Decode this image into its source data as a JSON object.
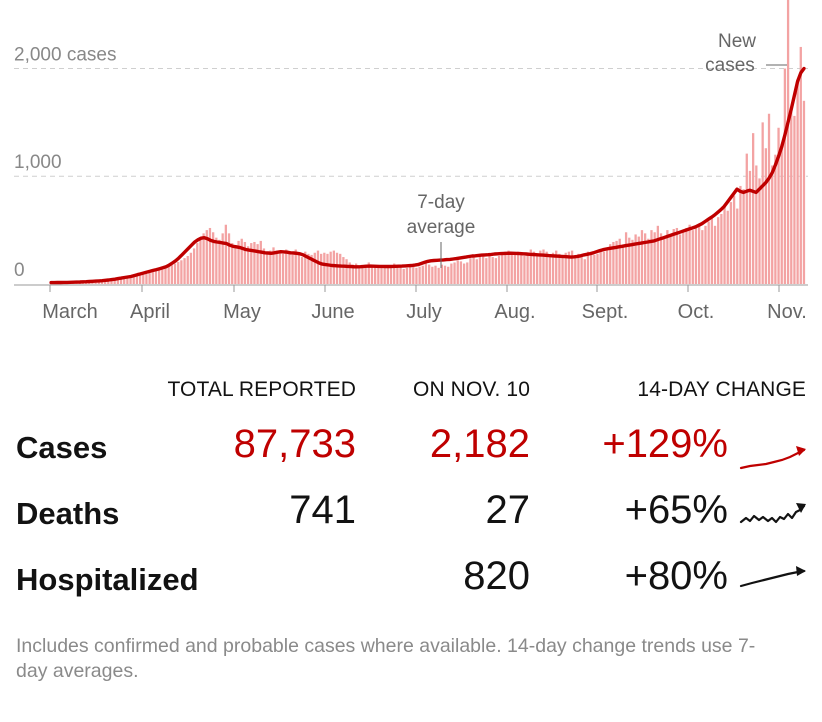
{
  "chart_data": {
    "type": "bar",
    "y_ticks": [
      {
        "value": 0,
        "label": "0"
      },
      {
        "value": 1000,
        "label": "1,000"
      },
      {
        "value": 2000,
        "label": "2,000 cases"
      }
    ],
    "ylim": [
      0,
      2450
    ],
    "x_ticks": [
      "March",
      "April",
      "May",
      "June",
      "July",
      "Aug.",
      "Sept.",
      "Oct.",
      "Nov."
    ],
    "annotations": {
      "average": "7-day average",
      "new_cases": "New cases"
    },
    "series": [
      {
        "kind": "bars",
        "values": [
          12,
          12,
          13,
          13,
          14,
          14,
          15,
          16,
          17,
          18,
          18,
          19,
          20,
          22,
          24,
          25,
          27,
          28,
          30,
          33,
          36,
          40,
          45,
          50,
          55,
          60,
          66,
          72,
          78,
          85,
          92,
          100,
          110,
          120,
          130,
          140,
          150,
          160,
          175,
          190,
          205,
          220,
          240,
          260,
          290,
          330,
          380,
          430,
          470,
          500,
          520,
          480,
          430,
          410,
          470,
          550,
          470,
          380,
          360,
          400,
          420,
          390,
          350,
          380,
          390,
          370,
          400,
          330,
          300,
          310,
          340,
          310,
          300,
          280,
          320,
          300,
          270,
          320,
          290,
          250,
          300,
          280,
          270,
          290,
          310,
          280,
          290,
          280,
          300,
          310,
          290,
          280,
          250,
          230,
          200,
          180,
          190,
          160,
          170,
          180,
          200,
          170,
          160,
          150,
          170,
          160,
          170,
          150,
          190,
          170,
          160,
          140,
          150,
          160,
          170,
          150,
          160,
          170,
          190,
          180,
          160,
          170,
          150,
          180,
          170,
          160,
          190,
          200,
          220,
          210,
          190,
          200,
          240,
          260,
          230,
          280,
          260,
          240,
          270,
          250,
          240,
          260,
          280,
          300,
          310,
          290,
          270,
          300,
          280,
          260,
          290,
          320,
          300,
          280,
          310,
          320,
          300,
          270,
          290,
          310,
          280,
          260,
          290,
          300,
          310,
          240,
          280,
          250,
          230,
          300,
          290,
          270,
          280,
          320,
          300,
          330,
          370,
          390,
          400,
          420,
          350,
          480,
          430,
          410,
          460,
          440,
          500,
          470,
          420,
          500,
          480,
          540,
          470,
          440,
          500,
          460,
          510,
          520,
          460,
          480,
          520,
          550,
          500,
          530,
          560,
          500,
          540,
          580,
          610,
          540,
          620,
          650,
          720,
          680,
          760,
          820,
          700,
          910,
          880,
          1210,
          1050,
          1400,
          1100,
          980,
          1500,
          1260,
          1580,
          1100,
          1200,
          1450,
          1300,
          2000,
          2650,
          1600,
          1560,
          1900,
          2200,
          1700
        ],
        "color": "#f3a3a3"
      },
      {
        "kind": "line",
        "name": "7-day average",
        "values": [
          13,
          13,
          14,
          14,
          15,
          15,
          16,
          17,
          18,
          19,
          20,
          21,
          23,
          25,
          27,
          29,
          31,
          34,
          37,
          41,
          45,
          50,
          55,
          60,
          65,
          70,
          78,
          86,
          94,
          102,
          110,
          118,
          126,
          134,
          142,
          150,
          160,
          175,
          195,
          215,
          240,
          270,
          300,
          330,
          360,
          390,
          410,
          425,
          430,
          420,
          405,
          395,
          390,
          385,
          380,
          375,
          360,
          350,
          345,
          340,
          330,
          320,
          315,
          310,
          305,
          300,
          295,
          290,
          288,
          285,
          290,
          295,
          300,
          298,
          295,
          290,
          288,
          285,
          280,
          270,
          255,
          240,
          225,
          210,
          195,
          185,
          180,
          176,
          172,
          170,
          168,
          166,
          165,
          163,
          162,
          160,
          160,
          161,
          163,
          165,
          166,
          165,
          164,
          163,
          163,
          162,
          162,
          163,
          164,
          165,
          166,
          168,
          170,
          172,
          175,
          180,
          190,
          200,
          210,
          215,
          218,
          220,
          222,
          224,
          226,
          228,
          232,
          236,
          240,
          245,
          250,
          255,
          260,
          262,
          265,
          268,
          270,
          272,
          275,
          278,
          280,
          282,
          284,
          285,
          286,
          285,
          284,
          282,
          280,
          278,
          276,
          274,
          272,
          270,
          268,
          266,
          264,
          262,
          260,
          258,
          256,
          254,
          252,
          250,
          252,
          256,
          262,
          270,
          276,
          282,
          290,
          300,
          310,
          318,
          325,
          330,
          335,
          340,
          345,
          350,
          355,
          360,
          365,
          370,
          375,
          380,
          385,
          390,
          395,
          400,
          410,
          420,
          430,
          440,
          450,
          460,
          470,
          480,
          490,
          500,
          510,
          520,
          530,
          545,
          560,
          580,
          600,
          620,
          640,
          665,
          690,
          720,
          760,
          800,
          840,
          880,
          860,
          850,
          860,
          870,
          860,
          850,
          880,
          910,
          940,
          980,
          1030,
          1100,
          1180,
          1270,
          1380,
          1500,
          1620,
          1750,
          1880,
          1960,
          2000
        ]
      }
    ]
  },
  "stats": {
    "headers": [
      "TOTAL REPORTED",
      "ON NOV. 10",
      "14-DAY CHANGE"
    ],
    "rows": [
      {
        "label": "Cases",
        "total": "87,733",
        "on_day": "2,182",
        "change": "+129%",
        "color": "#bf0000"
      },
      {
        "label": "Deaths",
        "total": "741",
        "on_day": "27",
        "change": "+65%",
        "color": "#121212"
      },
      {
        "label": "Hospitalized",
        "total": "",
        "on_day": "820",
        "change": "+80%",
        "color": "#121212"
      }
    ]
  },
  "note": "Includes confirmed and probable cases where available. 14-day change trends use 7-day averages."
}
